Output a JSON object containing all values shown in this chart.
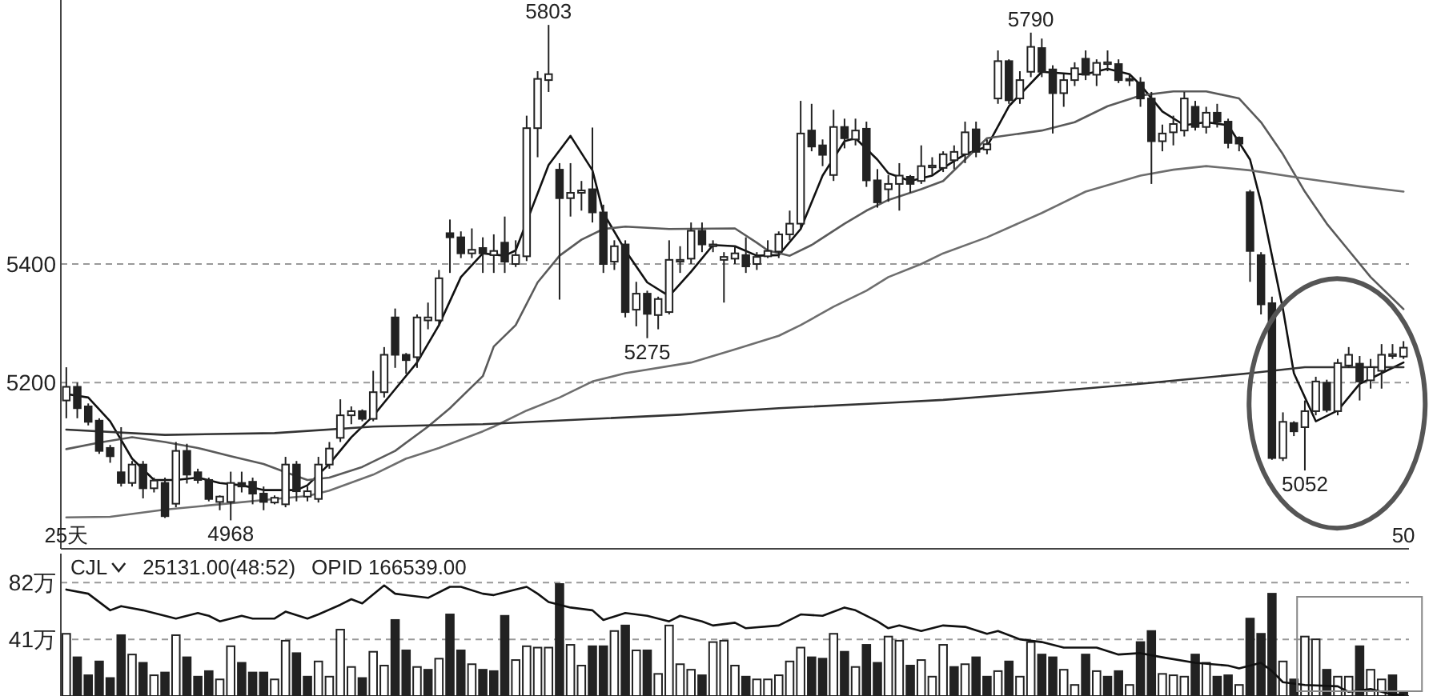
{
  "chart_data": [
    {
      "type": "candlestick",
      "categories": [
        "25天",
        null,
        null,
        null,
        null,
        null,
        null,
        null,
        null,
        null,
        null,
        null,
        null,
        null,
        null,
        null,
        null,
        null,
        null,
        null,
        null,
        null,
        null,
        null,
        null,
        null,
        null,
        null,
        null,
        null,
        null,
        null,
        null,
        null,
        null,
        null,
        null,
        null,
        null,
        null,
        null,
        null,
        null,
        null,
        null,
        null,
        null,
        null,
        null,
        null,
        null,
        null,
        null,
        null,
        null,
        null,
        null,
        null,
        null,
        null,
        null,
        null,
        null,
        null,
        null,
        null,
        null,
        null,
        null,
        null,
        null,
        null,
        null,
        null,
        null,
        null,
        null,
        null,
        null,
        null,
        null,
        null,
        null,
        null,
        null,
        null,
        null,
        null,
        null,
        null,
        null,
        null,
        null,
        null,
        null,
        null,
        null,
        null,
        null,
        null,
        null,
        null,
        null,
        null,
        null,
        null,
        null,
        null,
        null,
        null,
        null,
        null,
        null,
        null,
        null,
        null,
        null,
        null,
        null,
        null,
        null,
        null,
        "50"
      ],
      "ohlc": [
        [
          5170,
          5226,
          5140,
          5193
        ],
        [
          5193,
          5200,
          5140,
          5157
        ],
        [
          5160,
          5165,
          5128,
          5134
        ],
        [
          5136,
          5140,
          5080,
          5085
        ],
        [
          5090,
          5095,
          5065,
          5076
        ],
        [
          5049,
          5125,
          5025,
          5031
        ],
        [
          5031,
          5068,
          5025,
          5062
        ],
        [
          5062,
          5068,
          5005,
          5022
        ],
        [
          5022,
          5040,
          5015,
          5035
        ],
        [
          5031,
          5040,
          4972,
          4975
        ],
        [
          4996,
          5100,
          4990,
          5085
        ],
        [
          5085,
          5097,
          5030,
          5045
        ],
        [
          5049,
          5055,
          5030,
          5036
        ],
        [
          5036,
          5040,
          5000,
          5004
        ],
        [
          4999,
          5010,
          4985,
          5008
        ],
        [
          4999,
          5050,
          4968,
          5031
        ],
        [
          5031,
          5050,
          5015,
          5025
        ],
        [
          5033,
          5040,
          4995,
          5013
        ],
        [
          5013,
          5025,
          4985,
          4999
        ],
        [
          4998,
          5010,
          4995,
          5006
        ],
        [
          4995,
          5075,
          4990,
          5062
        ],
        [
          5062,
          5068,
          5000,
          5017
        ],
        [
          5008,
          5025,
          5000,
          5017
        ],
        [
          5004,
          5075,
          4998,
          5062
        ],
        [
          5062,
          5100,
          5055,
          5089
        ],
        [
          5107,
          5172,
          5100,
          5145
        ],
        [
          5145,
          5160,
          5130,
          5152
        ],
        [
          5152,
          5155,
          5135,
          5139
        ],
        [
          5139,
          5220,
          5135,
          5184
        ],
        [
          5184,
          5260,
          5175,
          5247
        ],
        [
          5310,
          5325,
          5225,
          5247
        ],
        [
          5247,
          5250,
          5215,
          5238
        ],
        [
          5243,
          5315,
          5225,
          5310
        ],
        [
          5305,
          5335,
          5290,
          5310
        ],
        [
          5305,
          5390,
          5295,
          5376
        ],
        [
          5452,
          5475,
          5385,
          5445
        ],
        [
          5445,
          5455,
          5410,
          5418
        ],
        [
          5418,
          5460,
          5410,
          5424
        ],
        [
          5427,
          5445,
          5385,
          5418
        ],
        [
          5415,
          5450,
          5385,
          5422
        ],
        [
          5436,
          5480,
          5385,
          5404
        ],
        [
          5400,
          5440,
          5395,
          5415
        ],
        [
          5413,
          5650,
          5405,
          5629
        ],
        [
          5629,
          5725,
          5580,
          5712
        ],
        [
          5710,
          5803,
          5690,
          5720
        ],
        [
          5559,
          5570,
          5340,
          5511
        ],
        [
          5511,
          5570,
          5480,
          5520
        ],
        [
          5520,
          5540,
          5490,
          5524
        ],
        [
          5526,
          5630,
          5470,
          5487
        ],
        [
          5487,
          5500,
          5385,
          5400
        ],
        [
          5404,
          5440,
          5390,
          5430
        ],
        [
          5433,
          5440,
          5310,
          5319
        ],
        [
          5323,
          5370,
          5295,
          5350
        ],
        [
          5350,
          5355,
          5275,
          5316
        ],
        [
          5314,
          5345,
          5290,
          5341
        ],
        [
          5319,
          5440,
          5315,
          5407
        ],
        [
          5404,
          5430,
          5385,
          5407
        ],
        [
          5409,
          5470,
          5400,
          5456
        ],
        [
          5456,
          5470,
          5420,
          5433
        ],
        [
          5430,
          5440,
          5420,
          5433
        ],
        [
          5407,
          5420,
          5335,
          5412
        ],
        [
          5409,
          5430,
          5400,
          5418
        ],
        [
          5415,
          5445,
          5385,
          5396
        ],
        [
          5400,
          5420,
          5390,
          5412
        ],
        [
          5413,
          5440,
          5410,
          5422
        ],
        [
          5421,
          5455,
          5410,
          5450
        ],
        [
          5450,
          5490,
          5440,
          5468
        ],
        [
          5468,
          5675,
          5460,
          5620
        ],
        [
          5625,
          5670,
          5590,
          5598
        ],
        [
          5600,
          5610,
          5565,
          5584
        ],
        [
          5550,
          5660,
          5540,
          5631
        ],
        [
          5631,
          5645,
          5595,
          5612
        ],
        [
          5610,
          5645,
          5600,
          5625
        ],
        [
          5628,
          5640,
          5530,
          5541
        ],
        [
          5541,
          5560,
          5495,
          5504
        ],
        [
          5526,
          5550,
          5505,
          5535
        ],
        [
          5535,
          5570,
          5490,
          5549
        ],
        [
          5547,
          5550,
          5520,
          5535
        ],
        [
          5540,
          5600,
          5535,
          5565
        ],
        [
          5563,
          5580,
          5550,
          5566
        ],
        [
          5562,
          5590,
          5555,
          5585
        ],
        [
          5575,
          5600,
          5560,
          5589
        ],
        [
          5585,
          5640,
          5570,
          5622
        ],
        [
          5627,
          5640,
          5580,
          5589
        ],
        [
          5593,
          5610,
          5585,
          5602
        ],
        [
          5679,
          5760,
          5670,
          5742
        ],
        [
          5742,
          5745,
          5670,
          5676
        ],
        [
          5679,
          5725,
          5670,
          5710
        ],
        [
          5724,
          5790,
          5715,
          5766
        ],
        [
          5764,
          5780,
          5715,
          5724
        ],
        [
          5728,
          5735,
          5620,
          5688
        ],
        [
          5688,
          5720,
          5665,
          5710
        ],
        [
          5710,
          5740,
          5700,
          5730
        ],
        [
          5746,
          5760,
          5710,
          5719
        ],
        [
          5719,
          5745,
          5700,
          5739
        ],
        [
          5737,
          5760,
          5725,
          5740
        ],
        [
          5737,
          5745,
          5705,
          5710
        ],
        [
          5712,
          5720,
          5700,
          5710
        ],
        [
          5706,
          5715,
          5665,
          5679
        ],
        [
          5679,
          5690,
          5535,
          5607
        ],
        [
          5607,
          5635,
          5590,
          5620
        ],
        [
          5622,
          5650,
          5600,
          5636
        ],
        [
          5625,
          5690,
          5615,
          5679
        ],
        [
          5665,
          5675,
          5625,
          5631
        ],
        [
          5631,
          5665,
          5620,
          5655
        ],
        [
          5655,
          5670,
          5630,
          5640
        ],
        [
          5640,
          5645,
          5595,
          5604
        ],
        [
          5613,
          5615,
          5590,
          5603
        ],
        [
          5521,
          5525,
          5370,
          5422
        ],
        [
          5415,
          5420,
          5315,
          5332
        ],
        [
          5334,
          5345,
          5070,
          5073
        ],
        [
          5073,
          5150,
          5068,
          5134
        ],
        [
          5132,
          5135,
          5110,
          5118
        ],
        [
          5125,
          5170,
          5052,
          5152
        ],
        [
          5152,
          5210,
          5145,
          5202
        ],
        [
          5200,
          5205,
          5150,
          5154
        ],
        [
          5152,
          5240,
          5145,
          5233
        ],
        [
          5229,
          5260,
          5225,
          5247
        ],
        [
          5232,
          5245,
          5170,
          5202
        ],
        [
          5204,
          5240,
          5190,
          5226
        ],
        [
          5220,
          5265,
          5190,
          5247
        ],
        [
          5245,
          5265,
          5240,
          5248
        ],
        [
          5244,
          5270,
          5240,
          5259
        ]
      ],
      "series": [
        {
          "type": "line",
          "color": "#111111",
          "values": [
            5181,
            null,
            5175,
            null,
            5135,
            null,
            5072,
            null,
            5036,
            null,
            5036,
            null,
            5040,
            null,
            5031,
            null,
            5027,
            null,
            5019,
            null,
            5019,
            5019,
            5027,
            null,
            5063,
            null,
            5108,
            null,
            5144,
            null,
            5189,
            null,
            5234,
            null,
            5297,
            null,
            5378,
            null,
            5418,
            null,
            5414,
            5423,
            null,
            null,
            5567,
            null,
            5616,
            null,
            5558,
            5486,
            null,
            5423,
            null,
            5369,
            null,
            5346,
            null,
            5387,
            null,
            5432,
            null,
            5430,
            null,
            5414,
            null,
            5415,
            null,
            5459,
            null,
            5549,
            null,
            5607,
            5612,
            null,
            5576,
            5553,
            null,
            5540,
            null,
            5549,
            5562,
            null,
            5585,
            null,
            5598,
            null,
            5666,
            null,
            null,
            5724,
            null,
            null,
            5720,
            5720,
            null,
            5729,
            null,
            5720,
            5702,
            null,
            5657,
            null,
            5634,
            null,
            5639,
            null,
            5634,
            null,
            5576,
            5504,
            5414,
            5324,
            5216,
            null,
            5135,
            null,
            5153,
            null,
            5198,
            null,
            5216,
            null,
            5234
          ]
        },
        {
          "type": "line",
          "color": "#5a5a5a",
          "values": [
            5088,
            null,
            null,
            5099,
            null,
            null,
            5108,
            null,
            null,
            5100,
            null,
            null,
            5090,
            null,
            null,
            5076,
            null,
            null,
            5063,
            null,
            5049,
            null,
            5036,
            null,
            5040,
            null,
            null,
            5058,
            null,
            null,
            5085,
            null,
            null,
            5126,
            null,
            5157,
            null,
            null,
            5211,
            5261,
            null,
            5297,
            null,
            5369,
            null,
            5414,
            null,
            5441,
            null,
            5459,
            null,
            5463,
            null,
            null,
            null,
            5459,
            null,
            null,
            null,
            null,
            null,
            5460,
            null,
            5436,
            5423,
            null,
            5414,
            null,
            5432,
            null,
            null,
            5468,
            null,
            5490,
            null,
            5508,
            null,
            null,
            5526,
            null,
            5540,
            null,
            null,
            null,
            5612,
            null,
            null,
            null,
            null,
            5625,
            null,
            null,
            5639,
            null,
            null,
            5666,
            null,
            null,
            5684,
            null,
            null,
            5691,
            null,
            null,
            5691,
            null,
            null,
            5679,
            null,
            5639,
            null,
            5585,
            null,
            5522,
            null,
            5468,
            null,
            5423,
            null,
            5378,
            null,
            5342,
            5324
          ]
        },
        {
          "type": "line",
          "color": "#6e6e6e",
          "values": [
            4973,
            null,
            null,
            null,
            4974,
            null,
            null,
            null,
            null,
            4986,
            null,
            null,
            null,
            null,
            4995,
            null,
            null,
            null,
            null,
            5004,
            null,
            null,
            5009,
            null,
            5018,
            null,
            null,
            null,
            5045,
            null,
            null,
            5072,
            null,
            null,
            5090,
            null,
            null,
            null,
            5118,
            5126,
            null,
            null,
            5153,
            null,
            null,
            5175,
            null,
            null,
            5202,
            null,
            null,
            5216,
            null,
            null,
            null,
            null,
            null,
            5234,
            null,
            null,
            null,
            5256,
            null,
            null,
            null,
            5279,
            null,
            5297,
            null,
            null,
            5328,
            null,
            null,
            5355,
            null,
            5378,
            null,
            null,
            5400,
            null,
            5418,
            null,
            null,
            null,
            5445,
            null,
            null,
            null,
            null,
            5486,
            null,
            null,
            null,
            5522,
            null,
            null,
            null,
            null,
            5549,
            null,
            null,
            5559,
            null,
            null,
            5565,
            null,
            null,
            null,
            5558,
            null,
            null,
            null,
            null,
            5544,
            null,
            null,
            null,
            null,
            5531,
            null,
            null,
            null,
            5522
          ]
        },
        {
          "type": "line",
          "color": "#333333",
          "values": [
            5121,
            null,
            null,
            null,
            null,
            null,
            null,
            null,
            null,
            5112,
            null,
            null,
            null,
            null,
            null,
            null,
            null,
            null,
            null,
            5115,
            null,
            null,
            null,
            null,
            null,
            null,
            null,
            null,
            5126,
            null,
            null,
            null,
            null,
            null,
            null,
            null,
            null,
            null,
            5130,
            null,
            null,
            null,
            null,
            null,
            null,
            null,
            5137,
            null,
            null,
            null,
            null,
            null,
            null,
            null,
            null,
            null,
            5146,
            null,
            null,
            null,
            null,
            null,
            null,
            null,
            null,
            5157,
            null,
            null,
            null,
            null,
            null,
            null,
            null,
            null,
            null,
            5166,
            null,
            null,
            null,
            null,
            5171,
            null,
            null,
            null,
            null,
            null,
            null,
            null,
            null,
            5184,
            null,
            null,
            null,
            null,
            null,
            null,
            null,
            null,
            5198,
            null,
            null,
            null,
            null,
            null,
            null,
            null,
            null,
            null,
            5216,
            null,
            null,
            null,
            null,
            5226,
            null,
            null,
            null,
            null,
            null,
            null,
            null,
            null,
            5226
          ]
        }
      ],
      "ylim": [
        4920,
        5845
      ],
      "yticks": [
        5200,
        5400
      ],
      "grid": "y",
      "annotations": [
        {
          "text": "5803",
          "y": 5803
        },
        {
          "text": "4968",
          "y": 4968
        },
        {
          "text": "5275",
          "y": 5275
        },
        {
          "text": "5790",
          "y": 5790
        },
        {
          "text": "5052",
          "y": 5052
        }
      ]
    },
    {
      "type": "bar",
      "categories": [
        null,
        null,
        null,
        null,
        null,
        null,
        null,
        null,
        null,
        null,
        null,
        null,
        null,
        null,
        null,
        null,
        null,
        null,
        null,
        null,
        null,
        null,
        null,
        null,
        null,
        null,
        null,
        null,
        null,
        null,
        null,
        null,
        null,
        null,
        null,
        null,
        null,
        null,
        null,
        null,
        null,
        null,
        null,
        null,
        null,
        null,
        null,
        null,
        null,
        null,
        null,
        null,
        null,
        null,
        null,
        null,
        null,
        null,
        null,
        null,
        null,
        null,
        null,
        null,
        null,
        null,
        null,
        null,
        null,
        null,
        null,
        null,
        null,
        null,
        null,
        null,
        null,
        null,
        null,
        null,
        null,
        null,
        null,
        null,
        null,
        null,
        null,
        null,
        null,
        null,
        null,
        null,
        null,
        null,
        null,
        null,
        null,
        null,
        null,
        null,
        null,
        null,
        null,
        null,
        null,
        null,
        null,
        null,
        null,
        null,
        null,
        null,
        null,
        null,
        null,
        null,
        null,
        null,
        null,
        null,
        null,
        null,
        null
      ],
      "series": [
        {
          "type": "bar",
          "values": [
            45,
            28,
            15,
            25,
            13,
            44,
            30,
            24,
            15,
            17,
            44,
            28,
            14,
            18,
            12,
            36,
            24,
            17,
            17,
            12,
            40,
            31,
            14,
            25,
            14,
            48,
            21,
            13,
            32,
            22,
            55,
            33,
            21,
            19,
            27,
            59,
            33,
            23,
            19,
            18,
            58,
            26,
            36,
            35,
            35,
            81,
            37,
            22,
            36,
            36,
            47,
            51,
            33,
            33,
            16,
            51,
            23,
            19,
            15,
            39,
            40,
            22,
            14,
            12,
            12,
            15,
            25,
            35,
            28,
            27,
            45,
            32,
            21,
            37,
            24,
            43,
            40,
            22,
            26,
            14,
            37,
            21,
            23,
            28,
            14,
            18,
            25,
            14,
            39,
            30,
            28,
            19,
            8,
            30,
            18,
            14,
            18,
            8,
            39,
            47,
            16,
            15,
            14,
            30,
            24,
            14,
            15,
            8,
            56,
            45,
            74,
            25,
            12,
            43,
            41,
            19,
            14,
            14,
            36,
            19,
            12,
            15,
            3
          ],
          "colors": [
            "#ffffff",
            "#222222",
            "#222222",
            "#222222",
            "#222222",
            "#222222",
            "#ffffff",
            "#222222",
            "#ffffff",
            "#222222",
            "#ffffff",
            "#222222",
            "#222222",
            "#222222",
            "#ffffff",
            "#ffffff",
            "#222222",
            "#222222",
            "#222222",
            "#ffffff",
            "#ffffff",
            "#222222",
            "#222222",
            "#ffffff",
            "#ffffff",
            "#ffffff",
            "#ffffff",
            "#222222",
            "#ffffff",
            "#ffffff",
            "#222222",
            "#222222",
            "#ffffff",
            "#222222",
            "#ffffff",
            "#222222",
            "#222222",
            "#ffffff",
            "#222222",
            "#222222",
            "#222222",
            "#ffffff",
            "#ffffff",
            "#ffffff",
            "#ffffff",
            "#222222",
            "#ffffff",
            "#ffffff",
            "#222222",
            "#222222",
            "#ffffff",
            "#222222",
            "#ffffff",
            "#222222",
            "#ffffff",
            "#ffffff",
            "#ffffff",
            "#ffffff",
            "#222222",
            "#ffffff",
            "#ffffff",
            "#ffffff",
            "#222222",
            "#ffffff",
            "#ffffff",
            "#ffffff",
            "#ffffff",
            "#ffffff",
            "#222222",
            "#222222",
            "#ffffff",
            "#222222",
            "#ffffff",
            "#222222",
            "#222222",
            "#ffffff",
            "#ffffff",
            "#222222",
            "#ffffff",
            "#ffffff",
            "#ffffff",
            "#222222",
            "#ffffff",
            "#222222",
            "#222222",
            "#ffffff",
            "#222222",
            "#ffffff",
            "#ffffff",
            "#222222",
            "#222222",
            "#ffffff",
            "#ffffff",
            "#222222",
            "#ffffff",
            "#222222",
            "#222222",
            "#ffffff",
            "#222222",
            "#222222",
            "#ffffff",
            "#ffffff",
            "#ffffff",
            "#222222",
            "#ffffff",
            "#222222",
            "#222222",
            "#ffffff",
            "#222222",
            "#222222",
            "#222222",
            "#ffffff",
            "#222222",
            "#ffffff",
            "#ffffff",
            "#222222",
            "#ffffff",
            "#ffffff",
            "#222222",
            "#ffffff",
            "#ffffff",
            "#222222",
            "#222222"
          ]
        },
        {
          "type": "line",
          "color": "#111111",
          "values": [
            77,
            null,
            74,
            null,
            62,
            65,
            null,
            62,
            null,
            58,
            56,
            null,
            60,
            58,
            54,
            null,
            58,
            56,
            null,
            56,
            61,
            null,
            56,
            59,
            null,
            66,
            70,
            67,
            null,
            80,
            74,
            null,
            null,
            71,
            null,
            79,
            79,
            null,
            74,
            73,
            null,
            null,
            79,
            74,
            68,
            null,
            64,
            null,
            62,
            55,
            null,
            60,
            null,
            58,
            null,
            54,
            58,
            null,
            54,
            51,
            null,
            53,
            49,
            null,
            null,
            51,
            null,
            59,
            null,
            58,
            null,
            64,
            62,
            null,
            54,
            49,
            51,
            null,
            47,
            null,
            51,
            null,
            50,
            null,
            45,
            47,
            null,
            41,
            null,
            39,
            null,
            35,
            null,
            null,
            35,
            null,
            30,
            null,
            31,
            null,
            28,
            null,
            null,
            24,
            null,
            null,
            22,
            20,
            null,
            24,
            18,
            10,
            null,
            8,
            null,
            null,
            7,
            3,
            null,
            5,
            null,
            1,
            1
          ]
        }
      ],
      "ylim": [
        0,
        103
      ],
      "yticks": [
        {
          "value": 82,
          "label": "82万"
        },
        {
          "value": 41,
          "label": "41万"
        }
      ],
      "grid": "y",
      "tick_labels": "y",
      "annotations": [
        "CJL",
        "25131.00(48:52)",
        "OPID 166539.00"
      ]
    }
  ]
}
